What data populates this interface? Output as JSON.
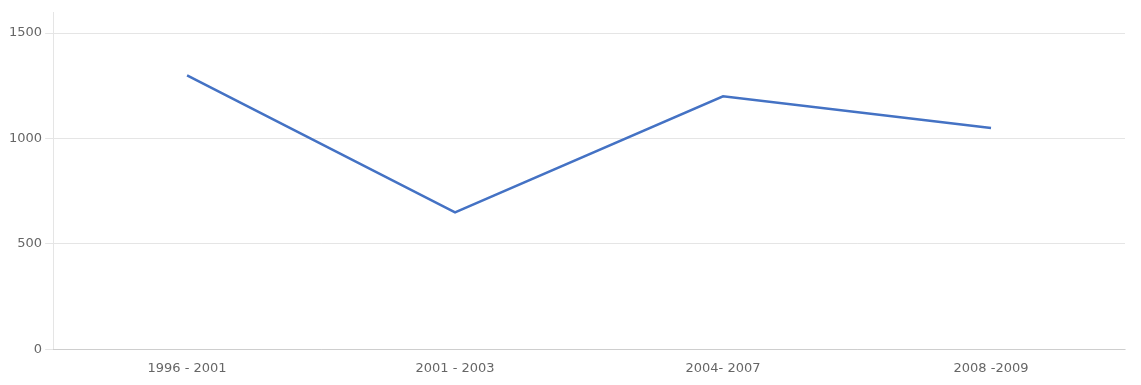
{
  "chart_data": {
    "type": "line",
    "categories": [
      "1996 - 2001",
      "2001 - 2003",
      "2004- 2007",
      "2008 -2009"
    ],
    "values": [
      1300,
      650,
      1200,
      1050
    ],
    "color": "#4472C4",
    "ylim": [
      0,
      1600
    ],
    "yticks": [
      0,
      500,
      1000,
      1500
    ],
    "grid": true
  }
}
